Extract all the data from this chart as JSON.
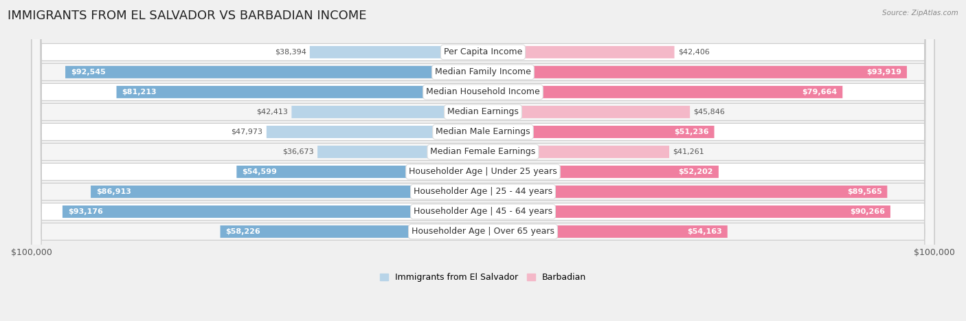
{
  "title": "IMMIGRANTS FROM EL SALVADOR VS BARBADIAN INCOME",
  "source": "Source: ZipAtlas.com",
  "categories": [
    "Per Capita Income",
    "Median Family Income",
    "Median Household Income",
    "Median Earnings",
    "Median Male Earnings",
    "Median Female Earnings",
    "Householder Age | Under 25 years",
    "Householder Age | 25 - 44 years",
    "Householder Age | 45 - 64 years",
    "Householder Age | Over 65 years"
  ],
  "el_salvador_values": [
    38394,
    92545,
    81213,
    42413,
    47973,
    36673,
    54599,
    86913,
    93176,
    58226
  ],
  "barbadian_values": [
    42406,
    93919,
    79664,
    45846,
    51236,
    41261,
    52202,
    89565,
    90266,
    54163
  ],
  "el_salvador_color": "#7bafd4",
  "barbadian_color": "#f07fa0",
  "el_salvador_color_light": "#b8d4e8",
  "barbadian_color_light": "#f4b8c8",
  "el_salvador_label": "Immigrants from El Salvador",
  "barbadian_label": "Barbadian",
  "max_value": 100000,
  "background_color": "#f0f0f0",
  "row_bg_color": "#e8e8e8",
  "row_bg_white": "#fafafa",
  "title_fontsize": 13,
  "label_fontsize": 9,
  "value_fontsize": 8,
  "axis_label_fontsize": 9,
  "inside_threshold": 0.5
}
